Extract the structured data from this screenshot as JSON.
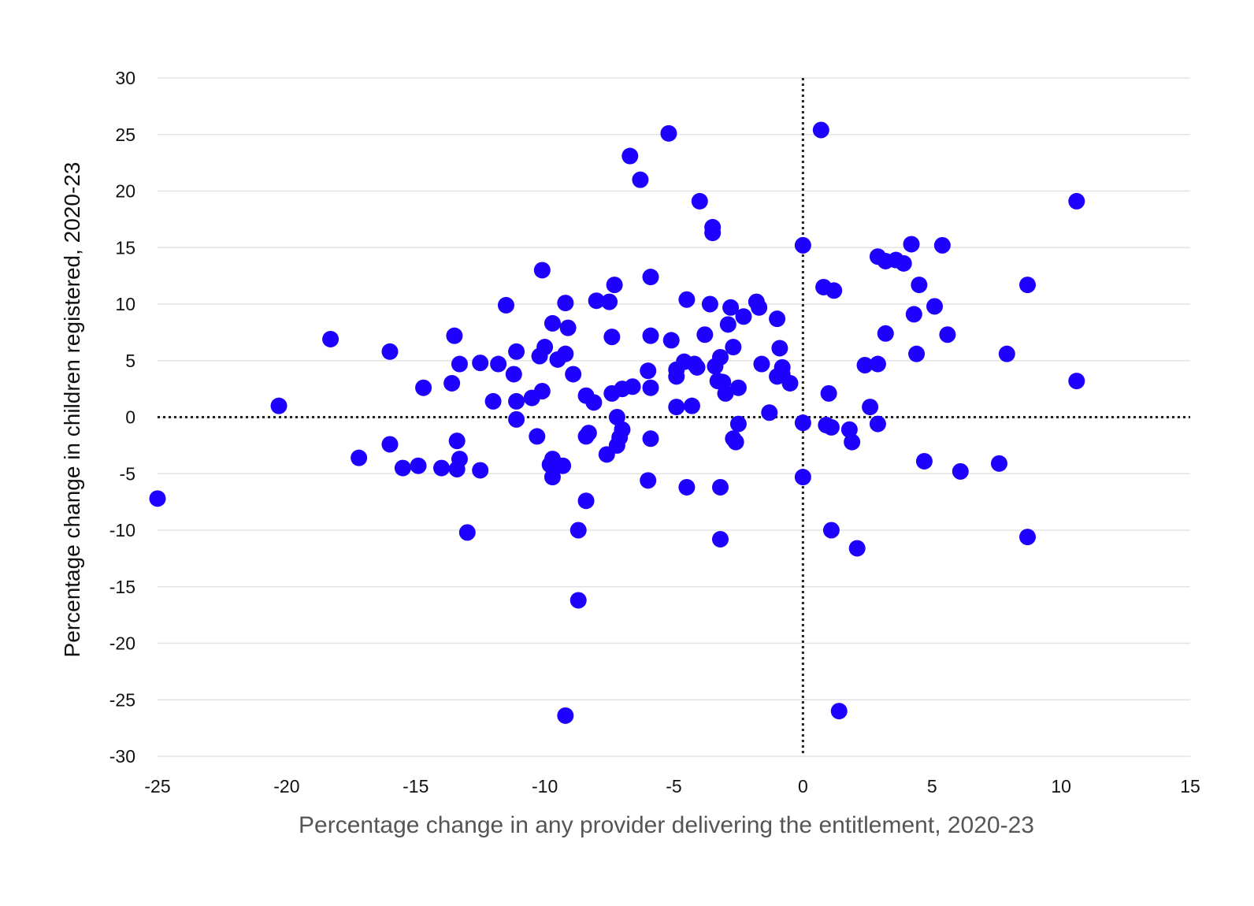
{
  "chart_data": {
    "type": "scatter",
    "title": "",
    "xlabel": "Percentage change in any provider delivering the entitlement, 2020-23",
    "ylabel": "Percentage change in children registered, 2020-23",
    "xlim": [
      -25,
      15
    ],
    "ylim": [
      -30,
      30
    ],
    "x_ticks": [
      -25,
      -20,
      -15,
      -10,
      -5,
      0,
      5,
      10,
      15
    ],
    "y_ticks": [
      30,
      25,
      20,
      15,
      10,
      5,
      0,
      -5,
      -10,
      -15,
      -20,
      -25,
      -30
    ],
    "x_tick_labels": [
      "-25",
      "-20",
      "-15",
      "-10",
      "-5",
      "0",
      "5",
      "10",
      "15"
    ],
    "y_tick_labels": [
      "30",
      "25",
      "20",
      "15",
      "10",
      "5",
      "0",
      "-5",
      "-10",
      "-15",
      "-20",
      "-25",
      "-30"
    ],
    "grid": "horizontal",
    "reference_lines": [
      {
        "axis": "x",
        "value": 0,
        "style": "dotted"
      },
      {
        "axis": "y",
        "value": 0,
        "style": "dotted"
      }
    ],
    "point_color": "#1e00ff",
    "grid_color": "#e3e3e3",
    "points": [
      [
        -25.0,
        -7.2
      ],
      [
        -20.3,
        1.0
      ],
      [
        -18.3,
        6.9
      ],
      [
        -17.2,
        -3.6
      ],
      [
        -16.0,
        5.8
      ],
      [
        -16.0,
        -2.4
      ],
      [
        -15.5,
        -4.5
      ],
      [
        -14.9,
        -4.3
      ],
      [
        -14.7,
        2.6
      ],
      [
        -14.0,
        -4.5
      ],
      [
        -13.6,
        3.0
      ],
      [
        -13.5,
        7.2
      ],
      [
        -13.4,
        -2.1
      ],
      [
        -13.3,
        4.7
      ],
      [
        -13.3,
        -3.7
      ],
      [
        -13.4,
        -4.6
      ],
      [
        -13.0,
        -10.2
      ],
      [
        -12.5,
        4.8
      ],
      [
        -12.5,
        -4.7
      ],
      [
        -12.0,
        1.4
      ],
      [
        -11.8,
        4.7
      ],
      [
        -11.5,
        9.9
      ],
      [
        -11.2,
        3.8
      ],
      [
        -11.1,
        5.8
      ],
      [
        -11.1,
        1.4
      ],
      [
        -11.1,
        -0.2
      ],
      [
        -10.5,
        1.7
      ],
      [
        -10.3,
        -1.7
      ],
      [
        -10.1,
        13.0
      ],
      [
        -10.2,
        5.4
      ],
      [
        -10.1,
        2.3
      ],
      [
        -10.0,
        6.2
      ],
      [
        -9.8,
        -4.2
      ],
      [
        -9.7,
        -3.7
      ],
      [
        -9.7,
        -5.3
      ],
      [
        -9.7,
        8.3
      ],
      [
        -9.5,
        5.1
      ],
      [
        -9.3,
        -4.3
      ],
      [
        -9.2,
        5.6
      ],
      [
        -9.2,
        10.1
      ],
      [
        -9.1,
        7.9
      ],
      [
        -9.2,
        -26.4
      ],
      [
        -8.9,
        3.8
      ],
      [
        -8.7,
        -10.0
      ],
      [
        -8.7,
        -16.2
      ],
      [
        -8.4,
        -7.4
      ],
      [
        -8.4,
        1.9
      ],
      [
        -8.4,
        -1.7
      ],
      [
        -8.3,
        -1.4
      ],
      [
        -8.1,
        1.3
      ],
      [
        -8.0,
        10.3
      ],
      [
        -7.6,
        -3.3
      ],
      [
        -7.5,
        10.2
      ],
      [
        -7.4,
        7.1
      ],
      [
        -7.4,
        2.1
      ],
      [
        -7.3,
        11.7
      ],
      [
        -7.2,
        0.0
      ],
      [
        -7.2,
        -2.5
      ],
      [
        -7.1,
        -1.8
      ],
      [
        -7.0,
        -1.1
      ],
      [
        -7.0,
        2.5
      ],
      [
        -6.7,
        23.1
      ],
      [
        -6.6,
        2.7
      ],
      [
        -6.3,
        21.0
      ],
      [
        -6.0,
        4.1
      ],
      [
        -5.9,
        12.4
      ],
      [
        -5.9,
        7.2
      ],
      [
        -5.9,
        2.6
      ],
      [
        -5.9,
        -1.9
      ],
      [
        -6.0,
        -5.6
      ],
      [
        -5.2,
        25.1
      ],
      [
        -5.1,
        6.8
      ],
      [
        -4.9,
        4.2
      ],
      [
        -4.9,
        3.6
      ],
      [
        -4.9,
        0.9
      ],
      [
        -4.6,
        4.9
      ],
      [
        -4.5,
        10.4
      ],
      [
        -4.5,
        -6.2
      ],
      [
        -4.3,
        1.0
      ],
      [
        -4.2,
        4.7
      ],
      [
        -4.1,
        4.4
      ],
      [
        -4.0,
        19.1
      ],
      [
        -3.8,
        7.3
      ],
      [
        -3.6,
        10.0
      ],
      [
        -3.5,
        16.8
      ],
      [
        -3.5,
        16.3
      ],
      [
        -3.4,
        4.5
      ],
      [
        -3.3,
        3.2
      ],
      [
        -3.2,
        5.3
      ],
      [
        -3.2,
        -6.2
      ],
      [
        -3.2,
        -10.8
      ],
      [
        -3.1,
        3.1
      ],
      [
        -3.0,
        2.1
      ],
      [
        -2.9,
        8.2
      ],
      [
        -2.8,
        9.7
      ],
      [
        -2.7,
        6.2
      ],
      [
        -2.7,
        -1.9
      ],
      [
        -2.6,
        -2.2
      ],
      [
        -2.5,
        2.6
      ],
      [
        -2.5,
        -0.6
      ],
      [
        -2.3,
        8.9
      ],
      [
        -1.8,
        10.2
      ],
      [
        -1.7,
        9.7
      ],
      [
        -1.6,
        4.7
      ],
      [
        -1.3,
        0.4
      ],
      [
        -1.0,
        3.6
      ],
      [
        -1.0,
        8.7
      ],
      [
        -0.9,
        6.1
      ],
      [
        -0.8,
        4.4
      ],
      [
        -0.8,
        3.8
      ],
      [
        -0.5,
        3.0
      ],
      [
        0.0,
        15.2
      ],
      [
        0.0,
        -0.5
      ],
      [
        0.0,
        -5.3
      ],
      [
        0.7,
        25.4
      ],
      [
        0.8,
        11.5
      ],
      [
        0.9,
        -0.7
      ],
      [
        1.0,
        2.1
      ],
      [
        1.1,
        -0.9
      ],
      [
        1.1,
        -10.0
      ],
      [
        1.2,
        11.2
      ],
      [
        1.4,
        -26.0
      ],
      [
        1.8,
        -1.1
      ],
      [
        1.9,
        -2.2
      ],
      [
        2.1,
        -11.6
      ],
      [
        2.4,
        4.6
      ],
      [
        2.6,
        0.9
      ],
      [
        2.9,
        14.2
      ],
      [
        2.9,
        4.7
      ],
      [
        2.9,
        -0.6
      ],
      [
        3.2,
        13.8
      ],
      [
        3.2,
        7.4
      ],
      [
        3.6,
        13.9
      ],
      [
        3.9,
        13.6
      ],
      [
        4.2,
        15.3
      ],
      [
        4.3,
        9.1
      ],
      [
        4.4,
        5.6
      ],
      [
        4.5,
        11.7
      ],
      [
        4.7,
        -3.9
      ],
      [
        5.1,
        9.8
      ],
      [
        5.4,
        15.2
      ],
      [
        5.6,
        7.3
      ],
      [
        6.1,
        -4.8
      ],
      [
        7.6,
        -4.1
      ],
      [
        7.9,
        5.6
      ],
      [
        8.7,
        11.7
      ],
      [
        8.7,
        -10.6
      ],
      [
        10.6,
        19.1
      ],
      [
        10.6,
        3.2
      ]
    ]
  }
}
